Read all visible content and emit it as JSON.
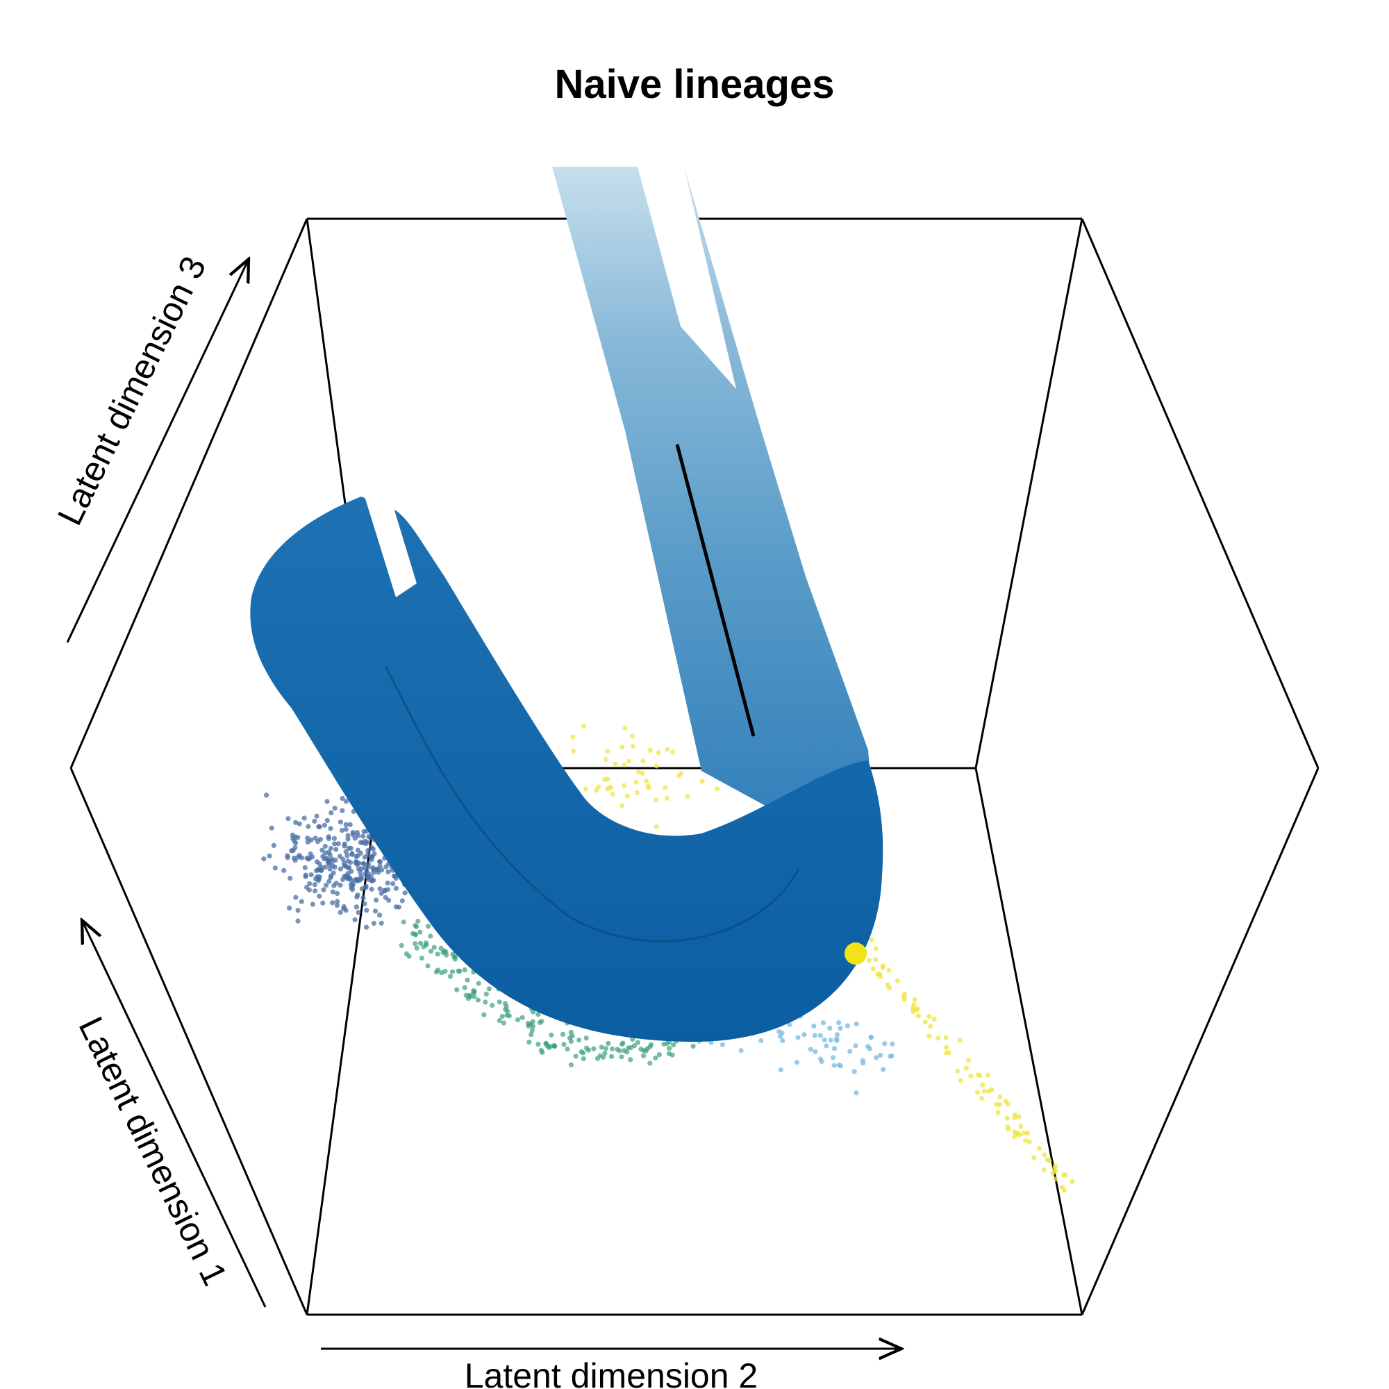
{
  "chart_data": {
    "type": "scatter",
    "title": "Naive lineages",
    "projection": "3d-perspective-box",
    "axes": {
      "x": {
        "label": "Latent dimension 1"
      },
      "y": {
        "label": "Latent dimension 2"
      },
      "z": {
        "label": "Latent dimension 3"
      }
    },
    "grid": false,
    "legend": "none",
    "tube": {
      "description": "principal curve rendered as a shaded tube, U-shaped",
      "color_start": "#c6dfec",
      "color_end": "#0b5ea1"
    },
    "colors": {
      "dark_blue": "#4a6fa5",
      "teal_green": "#3aa07a",
      "light_blue": "#7ab8e0",
      "yellow": "#f0e442",
      "highlight_yellow": "#f2e21a",
      "tube_light": "#c6dfec",
      "tube_mid": "#5a9cc8",
      "tube_dark": "#0b5ea1"
    }
  }
}
